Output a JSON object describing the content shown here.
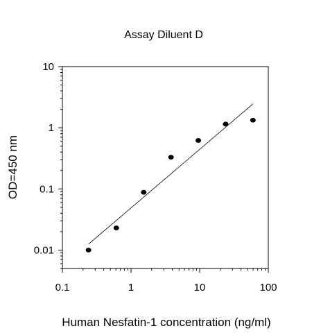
{
  "chart_data": {
    "type": "scatter",
    "title": "Assay Diluent D",
    "xlabel": "Human Nesfatin-1 concentration (ng/ml)",
    "ylabel": "OD=450 nm",
    "x_scale": "log",
    "y_scale": "log",
    "xlim": [
      0.1,
      100
    ],
    "ylim": [
      0.005,
      10
    ],
    "x_ticks": [
      0.1,
      1,
      10,
      100
    ],
    "x_tick_labels": [
      "0.1",
      "1",
      "10",
      "100"
    ],
    "y_ticks": [
      0.01,
      0.1,
      1,
      10
    ],
    "y_tick_labels": [
      "0.01",
      "0.1",
      "1",
      "10"
    ],
    "grid": false,
    "points": [
      {
        "x": 0.24,
        "y": 0.01
      },
      {
        "x": 0.61,
        "y": 0.023
      },
      {
        "x": 1.53,
        "y": 0.088
      },
      {
        "x": 3.82,
        "y": 0.33
      },
      {
        "x": 9.55,
        "y": 0.62
      },
      {
        "x": 23.9,
        "y": 1.15
      },
      {
        "x": 59.7,
        "y": 1.33
      }
    ],
    "fit_line": {
      "x": [
        0.24,
        59.7
      ],
      "y": [
        0.0125,
        2.45
      ]
    },
    "colors": {
      "points": "#000000",
      "line": "#000000"
    }
  }
}
